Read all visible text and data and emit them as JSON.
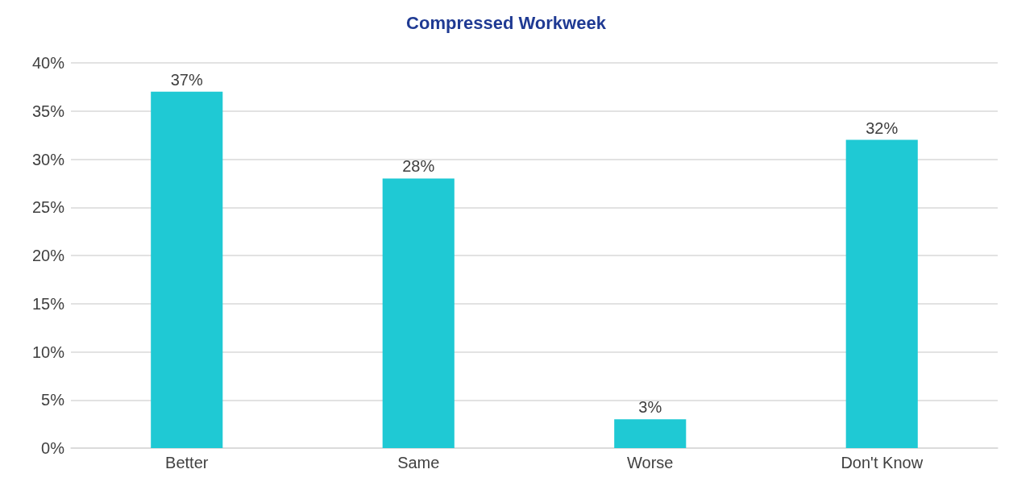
{
  "chart_data": {
    "type": "bar",
    "title": "Compressed Workweek",
    "categories": [
      "Better",
      "Same",
      "Worse",
      "Don't Know"
    ],
    "values": [
      37,
      28,
      3,
      32
    ],
    "color": "#1fc9d4",
    "ylim": [
      0,
      40
    ],
    "yticks": [
      {
        "value": 0,
        "label": "0%"
      },
      {
        "value": 5,
        "label": "5%"
      },
      {
        "value": 10,
        "label": "10%"
      },
      {
        "value": 15,
        "label": "15%"
      },
      {
        "value": 20,
        "label": "20%"
      },
      {
        "value": 25,
        "label": "25%"
      },
      {
        "value": 30,
        "label": "30%"
      },
      {
        "value": 35,
        "label": "35%"
      },
      {
        "value": 40,
        "label": "40%"
      }
    ],
    "value_labels": [
      "37%",
      "28%",
      "3%",
      "32%"
    ],
    "grid": true
  }
}
